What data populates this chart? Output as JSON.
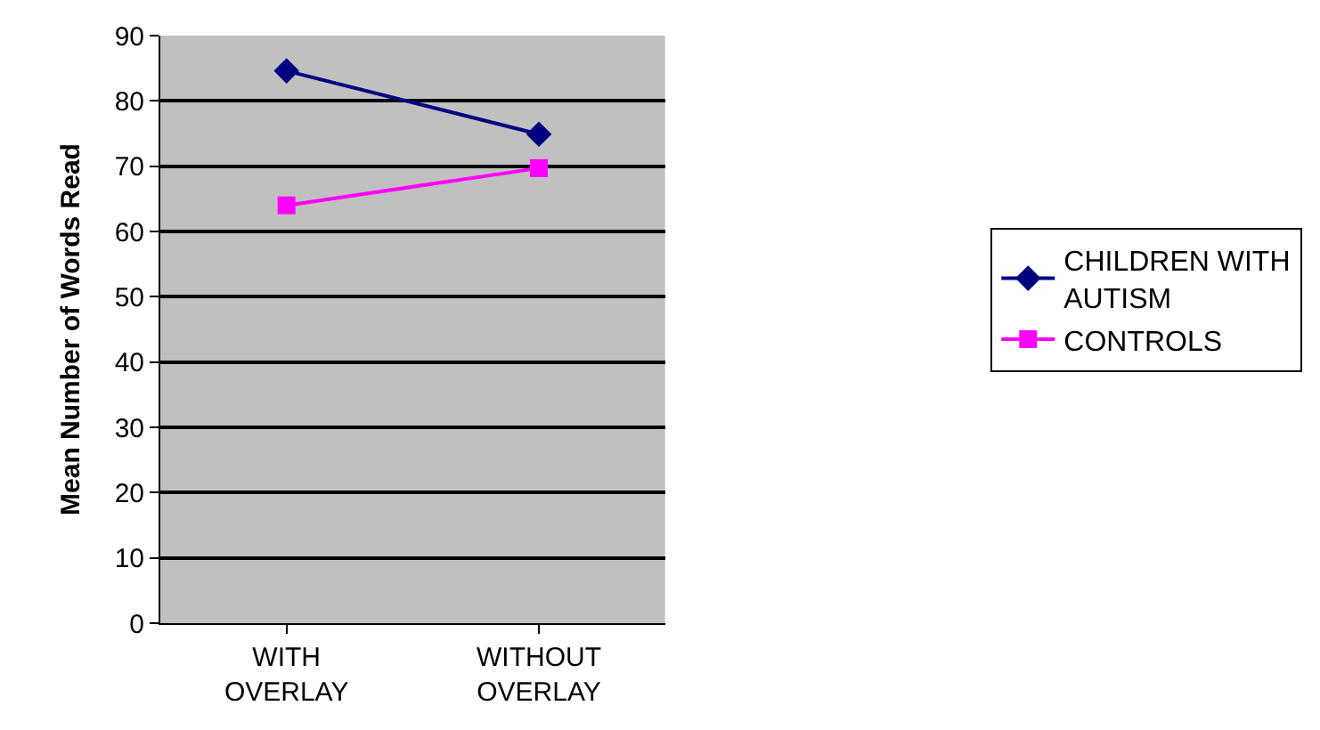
{
  "chart_data": {
    "type": "line",
    "ylabel": "Mean Number of Words Read",
    "categories": [
      "WITH OVERLAY",
      "WITHOUT OVERLAY"
    ],
    "series": [
      {
        "name": "CHILDREN WITH AUTISM",
        "color": "#000080",
        "marker": "diamond",
        "values": [
          84.6,
          74.9
        ]
      },
      {
        "name": "CONTROLS",
        "color": "#ff00ff",
        "marker": "square",
        "values": [
          64,
          69.7
        ]
      }
    ],
    "ylim": [
      0,
      90
    ],
    "yticks": [
      0,
      10,
      20,
      30,
      40,
      50,
      60,
      70,
      80,
      90
    ],
    "grid": "y",
    "legend": "right",
    "line_style": "solid"
  }
}
